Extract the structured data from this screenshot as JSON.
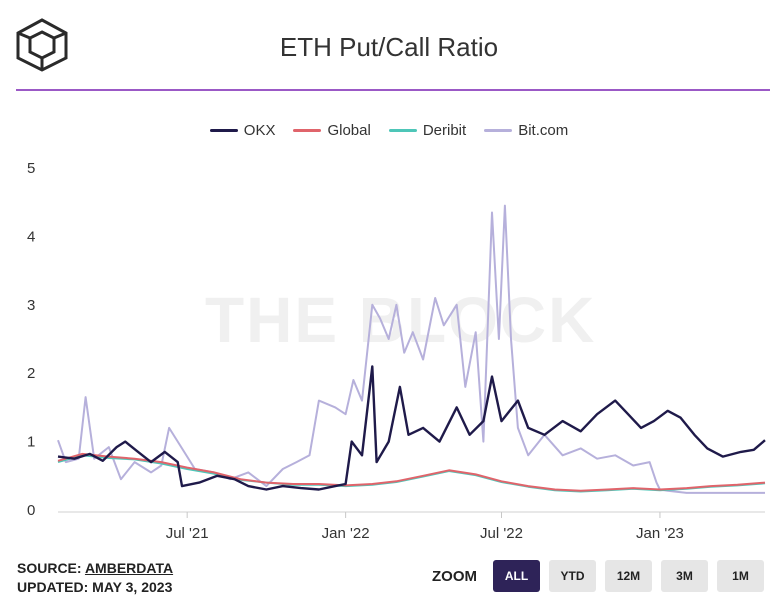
{
  "header": {
    "title": "ETH Put/Call Ratio",
    "logo_icon": "the-block-cube-logo"
  },
  "watermark": "THE BLOCK",
  "footer": {
    "source_label": "SOURCE:",
    "source_name": "AMBERDATA",
    "updated_label": "UPDATED: MAY 3, 2023"
  },
  "zoom": {
    "label": "ZOOM",
    "buttons": [
      "ALL",
      "YTD",
      "12M",
      "3M",
      "1M"
    ],
    "active": "ALL"
  },
  "colors": {
    "accent_rule": "#9b59c6",
    "okx": "#1f1a4a",
    "global": "#e0646b",
    "deribit": "#4ec6b8",
    "bitcom": "#b6b0db",
    "zoom_active": "#2e2358"
  },
  "chart_data": {
    "type": "line",
    "title": "ETH Put/Call Ratio",
    "xlabel": "",
    "ylabel": "",
    "ylim": [
      0,
      5
    ],
    "yticks": [
      "0",
      "1",
      "2",
      "3",
      "4",
      "5"
    ],
    "xticks": [
      {
        "date": "2021-07-01",
        "label": "Jul '21"
      },
      {
        "date": "2022-01-01",
        "label": "Jan '22"
      },
      {
        "date": "2022-07-01",
        "label": "Jul '22"
      },
      {
        "date": "2023-01-01",
        "label": "Jan '23"
      }
    ],
    "xrange": [
      "2021-02-01",
      "2023-05-03"
    ],
    "grid": false,
    "legend_position": "top-center",
    "series": [
      {
        "name": "OKX",
        "color": "#1f1a4a",
        "points": [
          [
            "2021-02-01",
            0.78
          ],
          [
            "2021-02-20",
            0.75
          ],
          [
            "2021-03-10",
            0.82
          ],
          [
            "2021-03-25",
            0.72
          ],
          [
            "2021-04-10",
            0.92
          ],
          [
            "2021-04-20",
            1.0
          ],
          [
            "2021-05-05",
            0.85
          ],
          [
            "2021-05-20",
            0.7
          ],
          [
            "2021-06-05",
            0.85
          ],
          [
            "2021-06-20",
            0.7
          ],
          [
            "2021-06-25",
            0.35
          ],
          [
            "2021-07-15",
            0.4
          ],
          [
            "2021-08-05",
            0.5
          ],
          [
            "2021-08-25",
            0.45
          ],
          [
            "2021-09-10",
            0.35
          ],
          [
            "2021-10-01",
            0.3
          ],
          [
            "2021-10-20",
            0.35
          ],
          [
            "2021-11-10",
            0.32
          ],
          [
            "2021-12-01",
            0.3
          ],
          [
            "2021-12-20",
            0.35
          ],
          [
            "2022-01-01",
            0.38
          ],
          [
            "2022-01-08",
            1.0
          ],
          [
            "2022-01-20",
            0.8
          ],
          [
            "2022-02-01",
            2.1
          ],
          [
            "2022-02-06",
            0.7
          ],
          [
            "2022-02-20",
            1.0
          ],
          [
            "2022-03-05",
            1.8
          ],
          [
            "2022-03-15",
            1.1
          ],
          [
            "2022-04-01",
            1.2
          ],
          [
            "2022-04-20",
            1.0
          ],
          [
            "2022-05-10",
            1.5
          ],
          [
            "2022-05-25",
            1.1
          ],
          [
            "2022-06-10",
            1.3
          ],
          [
            "2022-06-20",
            1.95
          ],
          [
            "2022-07-01",
            1.3
          ],
          [
            "2022-07-20",
            1.6
          ],
          [
            "2022-08-01",
            1.2
          ],
          [
            "2022-08-20",
            1.1
          ],
          [
            "2022-09-10",
            1.3
          ],
          [
            "2022-10-01",
            1.15
          ],
          [
            "2022-10-20",
            1.4
          ],
          [
            "2022-11-10",
            1.6
          ],
          [
            "2022-11-25",
            1.4
          ],
          [
            "2022-12-10",
            1.2
          ],
          [
            "2022-12-25",
            1.3
          ],
          [
            "2023-01-10",
            1.45
          ],
          [
            "2023-01-25",
            1.35
          ],
          [
            "2023-02-10",
            1.1
          ],
          [
            "2023-02-25",
            0.9
          ],
          [
            "2023-03-15",
            0.78
          ],
          [
            "2023-04-05",
            0.85
          ],
          [
            "2023-04-20",
            0.88
          ],
          [
            "2023-05-03",
            1.02
          ]
        ]
      },
      {
        "name": "Global",
        "color": "#e0646b",
        "points": [
          [
            "2021-02-01",
            0.72
          ],
          [
            "2021-03-01",
            0.82
          ],
          [
            "2021-04-01",
            0.78
          ],
          [
            "2021-05-01",
            0.75
          ],
          [
            "2021-06-01",
            0.7
          ],
          [
            "2021-07-01",
            0.62
          ],
          [
            "2021-08-01",
            0.55
          ],
          [
            "2021-09-01",
            0.45
          ],
          [
            "2021-10-01",
            0.4
          ],
          [
            "2021-11-01",
            0.38
          ],
          [
            "2021-12-01",
            0.38
          ],
          [
            "2022-01-01",
            0.36
          ],
          [
            "2022-02-01",
            0.38
          ],
          [
            "2022-03-01",
            0.42
          ],
          [
            "2022-04-01",
            0.5
          ],
          [
            "2022-05-01",
            0.58
          ],
          [
            "2022-06-01",
            0.52
          ],
          [
            "2022-07-01",
            0.42
          ],
          [
            "2022-08-01",
            0.35
          ],
          [
            "2022-09-01",
            0.3
          ],
          [
            "2022-10-01",
            0.28
          ],
          [
            "2022-11-01",
            0.3
          ],
          [
            "2022-12-01",
            0.32
          ],
          [
            "2023-01-01",
            0.3
          ],
          [
            "2023-02-01",
            0.32
          ],
          [
            "2023-03-01",
            0.35
          ],
          [
            "2023-04-01",
            0.37
          ],
          [
            "2023-05-03",
            0.4
          ]
        ]
      },
      {
        "name": "Deribit",
        "color": "#4ec6b8",
        "points": [
          [
            "2021-02-01",
            0.7
          ],
          [
            "2021-03-01",
            0.8
          ],
          [
            "2021-04-01",
            0.76
          ],
          [
            "2021-05-01",
            0.74
          ],
          [
            "2021-06-01",
            0.68
          ],
          [
            "2021-07-01",
            0.6
          ],
          [
            "2021-08-01",
            0.53
          ],
          [
            "2021-09-01",
            0.44
          ],
          [
            "2021-10-01",
            0.4
          ],
          [
            "2021-11-01",
            0.37
          ],
          [
            "2021-12-01",
            0.37
          ],
          [
            "2022-01-01",
            0.35
          ],
          [
            "2022-02-01",
            0.37
          ],
          [
            "2022-03-01",
            0.41
          ],
          [
            "2022-04-01",
            0.49
          ],
          [
            "2022-05-01",
            0.57
          ],
          [
            "2022-06-01",
            0.51
          ],
          [
            "2022-07-01",
            0.41
          ],
          [
            "2022-08-01",
            0.34
          ],
          [
            "2022-09-01",
            0.29
          ],
          [
            "2022-10-01",
            0.27
          ],
          [
            "2022-11-01",
            0.29
          ],
          [
            "2022-12-01",
            0.31
          ],
          [
            "2023-01-01",
            0.29
          ],
          [
            "2023-02-01",
            0.31
          ],
          [
            "2023-03-01",
            0.34
          ],
          [
            "2023-04-01",
            0.36
          ],
          [
            "2023-05-03",
            0.39
          ]
        ]
      },
      {
        "name": "Bit.com",
        "color": "#b6b0db",
        "points": [
          [
            "2021-02-01",
            1.02
          ],
          [
            "2021-02-10",
            0.7
          ],
          [
            "2021-02-25",
            0.75
          ],
          [
            "2021-03-05",
            1.65
          ],
          [
            "2021-03-15",
            0.75
          ],
          [
            "2021-04-01",
            0.92
          ],
          [
            "2021-04-15",
            0.45
          ],
          [
            "2021-05-01",
            0.7
          ],
          [
            "2021-05-20",
            0.55
          ],
          [
            "2021-06-01",
            0.65
          ],
          [
            "2021-06-10",
            1.2
          ],
          [
            "2021-06-25",
            0.9
          ],
          [
            "2021-07-10",
            0.6
          ],
          [
            "2021-08-01",
            0.55
          ],
          [
            "2021-08-20",
            0.45
          ],
          [
            "2021-09-10",
            0.55
          ],
          [
            "2021-10-01",
            0.35
          ],
          [
            "2021-10-20",
            0.6
          ],
          [
            "2021-11-05",
            0.7
          ],
          [
            "2021-11-20",
            0.8
          ],
          [
            "2021-12-01",
            1.6
          ],
          [
            "2021-12-20",
            1.5
          ],
          [
            "2022-01-01",
            1.4
          ],
          [
            "2022-01-10",
            1.9
          ],
          [
            "2022-01-20",
            1.6
          ],
          [
            "2022-02-01",
            3.0
          ],
          [
            "2022-02-10",
            2.8
          ],
          [
            "2022-02-20",
            2.5
          ],
          [
            "2022-03-01",
            3.0
          ],
          [
            "2022-03-10",
            2.3
          ],
          [
            "2022-03-20",
            2.6
          ],
          [
            "2022-04-01",
            2.2
          ],
          [
            "2022-04-15",
            3.1
          ],
          [
            "2022-04-25",
            2.7
          ],
          [
            "2022-05-10",
            3.0
          ],
          [
            "2022-05-20",
            1.8
          ],
          [
            "2022-06-01",
            2.6
          ],
          [
            "2022-06-10",
            1.0
          ],
          [
            "2022-06-20",
            4.35
          ],
          [
            "2022-06-28",
            2.5
          ],
          [
            "2022-07-05",
            4.45
          ],
          [
            "2022-07-12",
            2.5
          ],
          [
            "2022-07-20",
            1.2
          ],
          [
            "2022-08-01",
            0.8
          ],
          [
            "2022-08-20",
            1.1
          ],
          [
            "2022-09-10",
            0.8
          ],
          [
            "2022-10-01",
            0.9
          ],
          [
            "2022-10-20",
            0.75
          ],
          [
            "2022-11-10",
            0.8
          ],
          [
            "2022-12-01",
            0.65
          ],
          [
            "2022-12-20",
            0.7
          ],
          [
            "2022-12-28",
            0.4
          ],
          [
            "2023-01-01",
            0.3
          ],
          [
            "2023-01-10",
            0.28
          ],
          [
            "2023-02-01",
            0.25
          ],
          [
            "2023-03-01",
            0.25
          ],
          [
            "2023-04-01",
            0.25
          ],
          [
            "2023-05-03",
            0.25
          ]
        ]
      }
    ]
  }
}
